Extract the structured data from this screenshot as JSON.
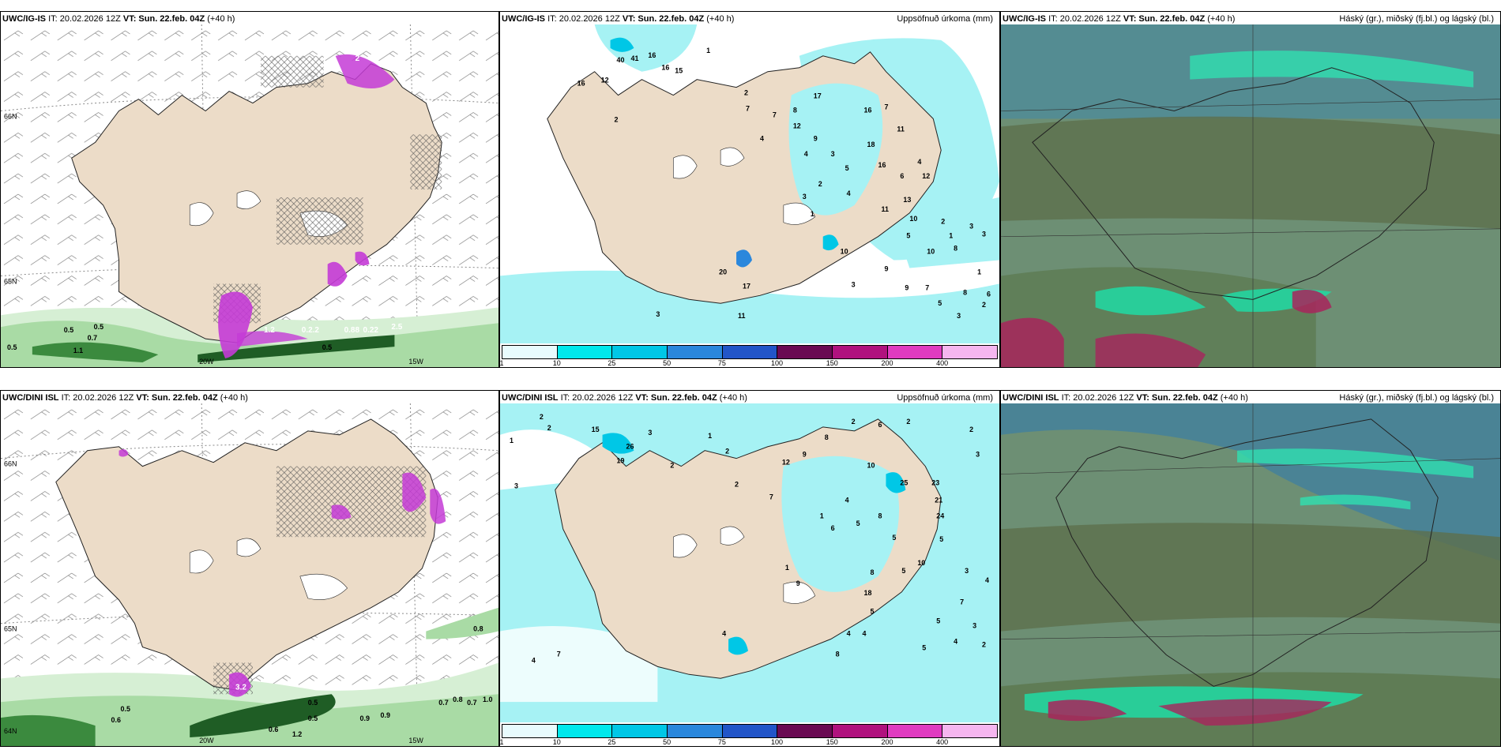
{
  "rows": [
    {
      "model": "UWC/IG-IS",
      "it": "IT: 20.02.2026 12Z",
      "vt_label": "VT: Sun. 22.feb. 04Z",
      "lead": "(+40 h)",
      "wind_numbers": [
        "0.5",
        "0.5",
        "0.7",
        "0.5",
        "1.1",
        "0.5",
        "0.2.2",
        "0.88",
        "0.22",
        "2.5",
        "1.2",
        "2"
      ],
      "lat_labels": [
        "66N",
        "65N"
      ],
      "lon_labels": [
        "20W",
        "15W"
      ],
      "precip_numbers": [
        "40",
        "41",
        "16",
        "16",
        "15",
        "1",
        "16",
        "12",
        "2",
        "2",
        "7",
        "17",
        "8",
        "16",
        "7",
        "12",
        "7",
        "9",
        "11",
        "4",
        "18",
        "4",
        "3",
        "16",
        "5",
        "4",
        "12",
        "2",
        "6",
        "3",
        "4",
        "11",
        "1",
        "13",
        "10",
        "2",
        "5",
        "1",
        "10",
        "10",
        "3",
        "9",
        "8",
        "3",
        "3",
        "9",
        "7",
        "8",
        "6",
        "20",
        "17",
        "11",
        "5",
        "2",
        "3",
        "3",
        "1"
      ]
    },
    {
      "model": "UWC/DINI ISL",
      "it": "IT: 20.02.2026 12Z",
      "vt_label": "VT: Sun. 22.feb. 04Z",
      "lead": "(+40 h)",
      "wind_numbers": [
        "0.5",
        "0.5",
        "0.6",
        "0.6",
        "1.2",
        "0.5",
        "0.9",
        "0.9",
        "0.7",
        "0.8",
        "0.7",
        "1.0",
        "0.8",
        "3.2"
      ],
      "lat_labels": [
        "66N",
        "65N",
        "64N"
      ],
      "lon_labels": [
        "20W",
        "15W"
      ],
      "precip_numbers": [
        "2",
        "2",
        "1",
        "3",
        "15",
        "26",
        "19",
        "3",
        "2",
        "1",
        "2",
        "12",
        "9",
        "8",
        "2",
        "6",
        "2",
        "10",
        "25",
        "21",
        "24",
        "5",
        "2",
        "3",
        "2",
        "7",
        "1",
        "4",
        "5",
        "8",
        "5",
        "6",
        "23",
        "10",
        "5",
        "3",
        "4",
        "7",
        "8",
        "18",
        "9",
        "1",
        "5",
        "4",
        "4",
        "5",
        "4",
        "3",
        "8",
        "5",
        "2",
        "4",
        "7",
        "4"
      ]
    }
  ],
  "precip_title": "Uppsöfnuð úrkoma (mm)",
  "cloud_title": "Háský (gr.), miðský (fj.bl.) og lágský (bl.)",
  "colorbar": {
    "labels": [
      "1",
      "10",
      "25",
      "50",
      "75",
      "100",
      "150",
      "200",
      "400"
    ],
    "colors": [
      "#e8fbfd",
      "#00e8ec",
      "#00c7e6",
      "#2a87dc",
      "#2255c8",
      "#2a1e9a",
      "#6a0a52",
      "#b0127e",
      "#e03bc0",
      "#f5b6ef"
    ]
  },
  "colors": {
    "land": "#ecdcc8",
    "precip_light": "#a6f2f4",
    "wind_green": "#5aa85a",
    "magenta": "#c43bd6",
    "cloud_base": "#6d8f74"
  }
}
